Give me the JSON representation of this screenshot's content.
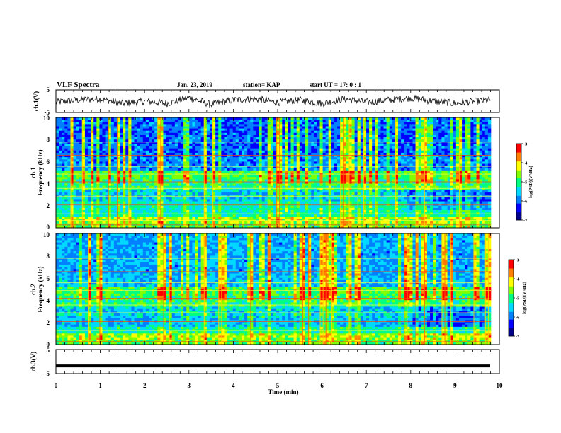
{
  "header": {
    "title": "VLF Spectra",
    "date": "Jan. 23, 2019",
    "station": "station= KAP",
    "start": "start  UT =   17: 0  : 1"
  },
  "colors": {
    "spectrogram": [
      "#00008b",
      "#0000ff",
      "#0080ff",
      "#00d8ff",
      "#00ff80",
      "#80ff00",
      "#ffff00",
      "#ff8000",
      "#ff0000",
      "#ffffff"
    ],
    "trace": "#000000"
  },
  "chart_data": [
    {
      "type": "line",
      "ylabel": "ch.1(V)",
      "ylim": [
        -5,
        5
      ],
      "yticks": [
        "5",
        "-5"
      ],
      "xlim": [
        0,
        10
      ],
      "description_of_trace": "noisy voltage trace fluctuating roughly between -3 and 3 V",
      "x": [
        0,
        0.5,
        1,
        1.5,
        2,
        2.5,
        3,
        3.5,
        4,
        4.5,
        5,
        5.5,
        6,
        6.5,
        7,
        7.5,
        8,
        8.5,
        9,
        9.5,
        9.8
      ],
      "y": [
        -0.5,
        0.5,
        1.0,
        -1.0,
        0.0,
        -1.0,
        1.5,
        -1.5,
        0.5,
        1.0,
        -0.5,
        0.5,
        -1.0,
        1.0,
        -0.5,
        0.5,
        1.5,
        0.0,
        -1.0,
        0.0,
        0.5
      ]
    },
    {
      "type": "heatmap",
      "ylabel": "ch.1\nFrequency (kHz)",
      "ylim": [
        0,
        10
      ],
      "yticks": [
        "0",
        "2",
        "4",
        "6",
        "8",
        "10"
      ],
      "xlim": [
        0,
        10
      ],
      "colorbar": {
        "label": "log(PSD)(V²/Hz)",
        "range": [
          -7,
          -3
        ],
        "ticks": [
          "-3",
          "-4",
          "-5",
          "-6",
          "-7"
        ]
      }
    },
    {
      "type": "heatmap",
      "ylabel": "ch.2\nFrequency (kHz)",
      "ylim": [
        0,
        10
      ],
      "yticks": [
        "0",
        "2",
        "4",
        "6",
        "8",
        "10"
      ],
      "xlim": [
        0,
        10
      ],
      "colorbar": {
        "label": "log(PSD)(V²/Hz)",
        "range": [
          -7,
          -3
        ],
        "ticks": [
          "-3",
          "-4",
          "-5",
          "-6",
          "-7"
        ]
      }
    },
    {
      "type": "line",
      "ylabel": "ch.3(V)",
      "ylim": [
        -5,
        5
      ],
      "yticks": [
        "5",
        "-5"
      ],
      "xlim": [
        0,
        10
      ],
      "xlabel": "Time (min)",
      "xticks": [
        "0",
        "1",
        "2",
        "3",
        "4",
        "5",
        "6",
        "7",
        "8",
        "9",
        "10"
      ],
      "x": [
        0,
        9.8
      ],
      "y": [
        -1.8,
        -1.8
      ]
    }
  ]
}
